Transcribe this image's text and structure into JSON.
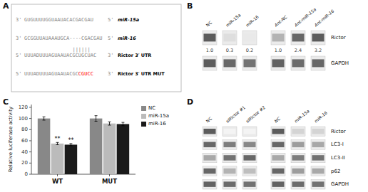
{
  "chart_data": [
    {
      "type": "sequence_alignment",
      "title": "A",
      "rows": [
        {
          "prefix": "3'",
          "sequence": "GUGUUUUGGUAAUACACGACGAU",
          "suffix": "5'",
          "label": "miR-15a"
        },
        {
          "prefix": "3'",
          "sequence": "GCGGUUAUAAAUGCA----CGACGAU",
          "suffix": "5'",
          "label": "miR-16"
        },
        {
          "prefix": "5'",
          "sequence": "UUUADUUUAGUAAUACGCUGCUAC",
          "suffix": "3'",
          "label": "Rictor 3′ UTR"
        },
        {
          "prefix": "5'",
          "sequence": "UUUADUUUAGUAAUACGC",
          "highlight": "CGUCC",
          "color": "red",
          "suffix": "3'",
          "label": "Rictor 3′ UTR MUT"
        }
      ],
      "pairing": "||||||"
    },
    {
      "type": "blot",
      "title": "B",
      "lanes": [
        [
          "NC",
          "miR-15a",
          "miR-16"
        ],
        [
          "Ant-NC",
          "Ant-miR-15a",
          "Ant-miR-16"
        ]
      ],
      "rows": [
        "Rictor",
        "GAPDH"
      ],
      "intensity": [
        [
          [
            0.75,
            0.15,
            0.1
          ],
          [
            0.35,
            0.7,
            0.75
          ]
        ],
        [
          [
            0.75,
            0.7,
            0.65
          ],
          [
            0.72,
            0.68,
            0.7
          ]
        ]
      ],
      "annotations": [
        [
          "1.0",
          "0.3",
          "0.2"
        ],
        [
          "1.0",
          "2.4",
          "3.2"
        ]
      ]
    },
    {
      "type": "bar",
      "title": "C",
      "categories": [
        "WT",
        "MUT"
      ],
      "series": [
        {
          "name": "NC",
          "color": "#888888",
          "values": [
            100,
            100
          ],
          "errors": [
            3,
            5
          ]
        },
        {
          "name": "miR-15a",
          "color": "#bbbbbb",
          "values": [
            55,
            91
          ],
          "errors": [
            2,
            3
          ]
        },
        {
          "name": "miR-16",
          "color": "#1a1a1a",
          "values": [
            53,
            90
          ],
          "errors": [
            2,
            3
          ]
        }
      ],
      "ylabel": "Relative luciferase activity",
      "ylim": [
        0,
        125
      ],
      "yticks": [
        0,
        20,
        40,
        60,
        80,
        100,
        120
      ],
      "legend": "upper right",
      "annotations": [
        {
          "text": "**",
          "category": "WT",
          "series": "miR-15a"
        },
        {
          "text": "**",
          "category": "WT",
          "series": "miR-16"
        }
      ]
    },
    {
      "type": "blot",
      "title": "D",
      "lanes": [
        [
          "NC",
          "siRictor #1",
          "siRictor #2"
        ],
        [
          "NC",
          "miR-15a",
          "miR-16"
        ]
      ],
      "rows": [
        "Rictor",
        "LC3-I",
        "LC3-II",
        "p62",
        "GAPDH"
      ],
      "intensity": [
        [
          [
            0.75,
            0.05,
            0.05
          ],
          [
            0.75,
            0.2,
            0.2
          ]
        ],
        [
          [
            0.7,
            0.6,
            0.55
          ],
          [
            0.7,
            0.45,
            0.4
          ]
        ],
        [
          [
            0.4,
            0.65,
            0.7
          ],
          [
            0.4,
            0.6,
            0.65
          ]
        ],
        [
          [
            0.7,
            0.35,
            0.3
          ],
          [
            0.7,
            0.45,
            0.4
          ]
        ],
        [
          [
            0.72,
            0.68,
            0.65
          ],
          [
            0.72,
            0.68,
            0.65
          ]
        ]
      ]
    }
  ]
}
